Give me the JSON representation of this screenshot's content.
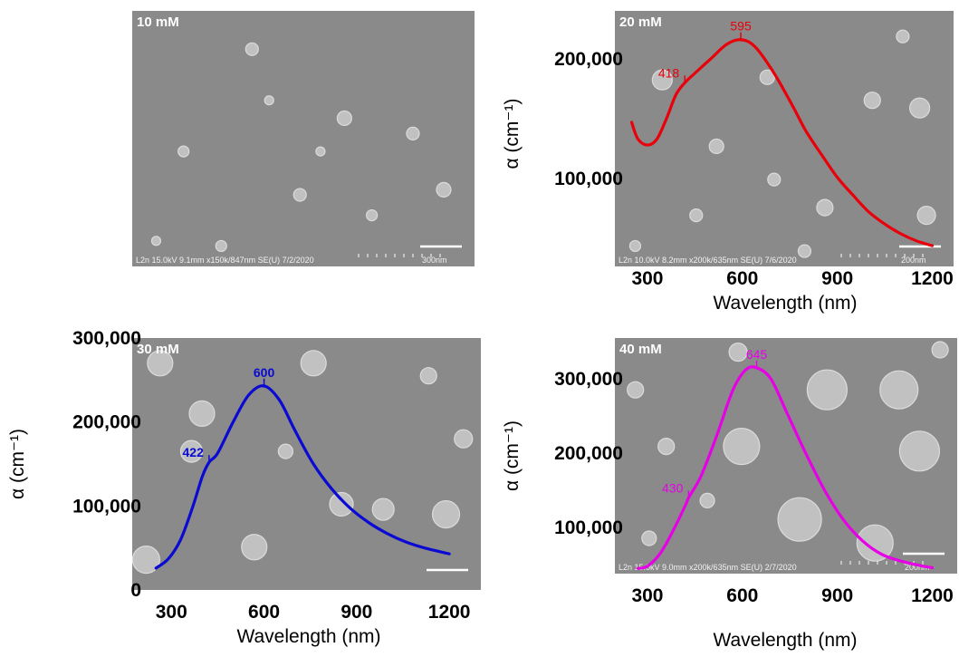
{
  "chart_data": [
    {
      "type": "image",
      "panel_label": "10 mM",
      "footer_text": "L2n 15.0kV 9.1mm x150k/847nm SE(U) 7/2/2020",
      "scale_bar_label": "300nm"
    },
    {
      "type": "line",
      "panel_label": "20 mM",
      "footer_text": "L2n 10.0kV 8.2mm x200k/635nm SE(U) 7/6/2020",
      "scale_bar_label": "200nm",
      "xlabel": "Wavelength (nm)",
      "ylabel": "α (cm⁻¹)",
      "xlim": [
        240,
        1230
      ],
      "ylim": [
        35000,
        240000
      ],
      "x_ticks": [
        300,
        600,
        900,
        1200
      ],
      "x_tick_labels": [
        "300",
        "600",
        "900",
        "1200"
      ],
      "y_ticks": [
        100000,
        200000
      ],
      "y_tick_labels": [
        "100,000",
        "200,000"
      ],
      "series": [
        {
          "color": "#e8000b",
          "x": [
            250,
            270,
            300,
            330,
            360,
            390,
            418,
            450,
            500,
            550,
            595,
            640,
            700,
            760,
            800,
            850,
            900,
            950,
            1000,
            1050,
            1100,
            1150,
            1200
          ],
          "y": [
            147000,
            133000,
            128000,
            133000,
            150000,
            170000,
            180000,
            188000,
            200000,
            212000,
            216000,
            210000,
            188000,
            160000,
            140000,
            120000,
            101000,
            86000,
            72000,
            62000,
            54000,
            48000,
            44000
          ]
        }
      ],
      "annotations": [
        {
          "text": "418",
          "x": 418,
          "y": 180000
        },
        {
          "text": "595",
          "x": 595,
          "y": 216000
        }
      ]
    },
    {
      "type": "line",
      "panel_label": "30 mM",
      "xlabel": "Wavelength (nm)",
      "ylabel": "α (cm⁻¹)",
      "xlim": [
        220,
        1270
      ],
      "ylim": [
        0,
        300000
      ],
      "x_ticks": [
        300,
        600,
        900,
        1200
      ],
      "x_tick_labels": [
        "300",
        "600",
        "900",
        "1200"
      ],
      "y_ticks": [
        0,
        100000,
        200000,
        300000
      ],
      "y_tick_labels": [
        "0",
        "100,000",
        "200,000",
        "300,000"
      ],
      "series": [
        {
          "color": "#0a0ad2",
          "x": [
            250,
            290,
            330,
            370,
            400,
            422,
            450,
            500,
            550,
            600,
            650,
            700,
            760,
            820,
            880,
            940,
            1000,
            1060,
            1120,
            1200
          ],
          "y": [
            26000,
            37000,
            60000,
            100000,
            135000,
            152000,
            163000,
            200000,
            232000,
            243000,
            226000,
            190000,
            150000,
            120000,
            97000,
            80000,
            67000,
            57000,
            50000,
            43000
          ]
        }
      ],
      "annotations": [
        {
          "text": "422",
          "x": 422,
          "y": 152000
        },
        {
          "text": "600",
          "x": 600,
          "y": 243000
        }
      ]
    },
    {
      "type": "line",
      "panel_label": "40 mM",
      "footer_text": "L2n 15.0kV 9.0mm x200k/635nm SE(U) 2/7/2020",
      "scale_bar_label": "200nm",
      "xlabel": "Wavelength (nm)",
      "ylabel": "α (cm⁻¹)",
      "xlim": [
        240,
        1230
      ],
      "ylim": [
        38000,
        355000
      ],
      "x_ticks": [
        300,
        600,
        900,
        1200
      ],
      "x_tick_labels": [
        "300",
        "600",
        "900",
        "1200"
      ],
      "y_ticks": [
        100000,
        200000,
        300000
      ],
      "y_tick_labels": [
        "100,000",
        "200,000",
        "300,000"
      ],
      "series": [
        {
          "color": "#e600e6",
          "x": [
            270,
            300,
            340,
            380,
            420,
            430,
            470,
            520,
            570,
            610,
            645,
            690,
            740,
            800,
            860,
            920,
            980,
            1040,
            1100,
            1160,
            1200
          ],
          "y": [
            45000,
            48000,
            65000,
            95000,
            130000,
            140000,
            170000,
            225000,
            285000,
            312000,
            315000,
            300000,
            255000,
            200000,
            150000,
            110000,
            82000,
            64000,
            55000,
            49000,
            46000
          ]
        }
      ],
      "annotations": [
        {
          "text": "430",
          "x": 430,
          "y": 140000
        },
        {
          "text": "645",
          "x": 645,
          "y": 315000
        }
      ]
    }
  ]
}
